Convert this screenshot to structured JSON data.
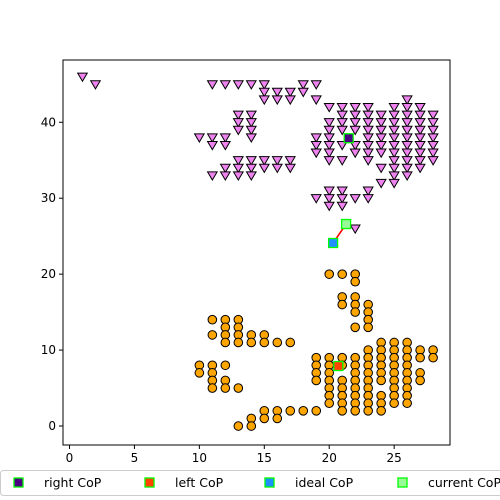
{
  "chart_data": {
    "type": "scatter",
    "title": "",
    "xlabel": "",
    "ylabel": "",
    "xlim": [
      -0.5,
      29.3
    ],
    "ylim": [
      -2.5,
      48.2
    ],
    "xticks": [
      0,
      5,
      10,
      15,
      20,
      25
    ],
    "yticks": [
      0,
      10,
      20,
      30,
      40
    ],
    "grid": false,
    "legend_position": "bottom",
    "series": [
      {
        "role": "foot-top",
        "marker": "triangle-down",
        "color": "#ee82ee",
        "points": [
          [
            1,
            46
          ],
          [
            2,
            45
          ],
          [
            11,
            45
          ],
          [
            12,
            45
          ],
          [
            13,
            45
          ],
          [
            14,
            45
          ],
          [
            15,
            45
          ],
          [
            18,
            45
          ],
          [
            19,
            45
          ],
          [
            15,
            44
          ],
          [
            16,
            44
          ],
          [
            17,
            44
          ],
          [
            18,
            44
          ],
          [
            15,
            43
          ],
          [
            16,
            43
          ],
          [
            17,
            43
          ],
          [
            19,
            43
          ],
          [
            26,
            43
          ],
          [
            20,
            42
          ],
          [
            21,
            42
          ],
          [
            22,
            42
          ],
          [
            23,
            42
          ],
          [
            25,
            42
          ],
          [
            26,
            42
          ],
          [
            27,
            42
          ],
          [
            13,
            41
          ],
          [
            14,
            41
          ],
          [
            21,
            41
          ],
          [
            22,
            41
          ],
          [
            23,
            41
          ],
          [
            24,
            41
          ],
          [
            25,
            41
          ],
          [
            26,
            41
          ],
          [
            27,
            41
          ],
          [
            28,
            41
          ],
          [
            13,
            40
          ],
          [
            14,
            40
          ],
          [
            20,
            40
          ],
          [
            21,
            40
          ],
          [
            22,
            40
          ],
          [
            23,
            40
          ],
          [
            24,
            40
          ],
          [
            25,
            40
          ],
          [
            26,
            40
          ],
          [
            27,
            40
          ],
          [
            28,
            40
          ],
          [
            13,
            39
          ],
          [
            14,
            39
          ],
          [
            20,
            39
          ],
          [
            21,
            39
          ],
          [
            22,
            39
          ],
          [
            23,
            39
          ],
          [
            24,
            39
          ],
          [
            25,
            39
          ],
          [
            26,
            39
          ],
          [
            27,
            39
          ],
          [
            28,
            39
          ],
          [
            10,
            38
          ],
          [
            11,
            38
          ],
          [
            12,
            38
          ],
          [
            14,
            38
          ],
          [
            19,
            38
          ],
          [
            20,
            38
          ],
          [
            23,
            38
          ],
          [
            24,
            38
          ],
          [
            25,
            38
          ],
          [
            26,
            38
          ],
          [
            27,
            38
          ],
          [
            28,
            38
          ],
          [
            11,
            37
          ],
          [
            12,
            37
          ],
          [
            19,
            37
          ],
          [
            20,
            37
          ],
          [
            21,
            37
          ],
          [
            22,
            37
          ],
          [
            23,
            37
          ],
          [
            24,
            37
          ],
          [
            25,
            37
          ],
          [
            26,
            37
          ],
          [
            27,
            37
          ],
          [
            28,
            37
          ],
          [
            19,
            36
          ],
          [
            20,
            36
          ],
          [
            22,
            36
          ],
          [
            23,
            36
          ],
          [
            24,
            36
          ],
          [
            25,
            36
          ],
          [
            26,
            36
          ],
          [
            27,
            36
          ],
          [
            28,
            36
          ],
          [
            13,
            35
          ],
          [
            14,
            35
          ],
          [
            15,
            35
          ],
          [
            16,
            35
          ],
          [
            17,
            35
          ],
          [
            20,
            35
          ],
          [
            21,
            35
          ],
          [
            23,
            35
          ],
          [
            25,
            35
          ],
          [
            26,
            35
          ],
          [
            27,
            35
          ],
          [
            28,
            35
          ],
          [
            12,
            34
          ],
          [
            13,
            34
          ],
          [
            14,
            34
          ],
          [
            15,
            34
          ],
          [
            16,
            34
          ],
          [
            17,
            34
          ],
          [
            24,
            34
          ],
          [
            25,
            34
          ],
          [
            26,
            34
          ],
          [
            27,
            34
          ],
          [
            11,
            33
          ],
          [
            12,
            33
          ],
          [
            13,
            33
          ],
          [
            14,
            33
          ],
          [
            25,
            33
          ],
          [
            26,
            33
          ],
          [
            24,
            32
          ],
          [
            25,
            32
          ],
          [
            20,
            31
          ],
          [
            21,
            31
          ],
          [
            23,
            31
          ],
          [
            19,
            30
          ],
          [
            20,
            30
          ],
          [
            21,
            30
          ],
          [
            22,
            30
          ],
          [
            23,
            30
          ],
          [
            20,
            29
          ],
          [
            21,
            29
          ],
          [
            22,
            26
          ]
        ]
      },
      {
        "role": "foot-bottom",
        "marker": "circle",
        "color": "#ffa500",
        "points": [
          [
            20,
            20
          ],
          [
            21,
            20
          ],
          [
            22,
            20
          ],
          [
            22,
            19
          ],
          [
            21,
            17
          ],
          [
            22,
            17
          ],
          [
            21,
            16
          ],
          [
            22,
            16
          ],
          [
            23,
            16
          ],
          [
            22,
            15
          ],
          [
            23,
            15
          ],
          [
            23,
            14
          ],
          [
            11,
            14
          ],
          [
            12,
            14
          ],
          [
            13,
            14
          ],
          [
            12,
            13
          ],
          [
            13,
            13
          ],
          [
            22,
            13
          ],
          [
            23,
            13
          ],
          [
            11,
            12
          ],
          [
            12,
            12
          ],
          [
            13,
            12
          ],
          [
            14,
            12
          ],
          [
            15,
            12
          ],
          [
            12,
            11
          ],
          [
            13,
            11
          ],
          [
            14,
            11
          ],
          [
            15,
            11
          ],
          [
            16,
            11
          ],
          [
            17,
            11
          ],
          [
            24,
            11
          ],
          [
            25,
            11
          ],
          [
            26,
            11
          ],
          [
            23,
            10
          ],
          [
            24,
            10
          ],
          [
            25,
            10
          ],
          [
            26,
            10
          ],
          [
            27,
            10
          ],
          [
            28,
            10
          ],
          [
            19,
            9
          ],
          [
            20,
            9
          ],
          [
            21,
            9
          ],
          [
            22,
            9
          ],
          [
            23,
            9
          ],
          [
            24,
            9
          ],
          [
            25,
            9
          ],
          [
            26,
            9
          ],
          [
            27,
            9
          ],
          [
            28,
            9
          ],
          [
            10,
            8
          ],
          [
            11,
            8
          ],
          [
            12,
            8
          ],
          [
            19,
            8
          ],
          [
            20,
            8
          ],
          [
            21,
            8
          ],
          [
            22,
            8
          ],
          [
            23,
            8
          ],
          [
            24,
            8
          ],
          [
            25,
            8
          ],
          [
            26,
            8
          ],
          [
            10,
            7
          ],
          [
            11,
            7
          ],
          [
            19,
            7
          ],
          [
            20,
            7
          ],
          [
            22,
            7
          ],
          [
            23,
            7
          ],
          [
            24,
            7
          ],
          [
            25,
            7
          ],
          [
            26,
            7
          ],
          [
            27,
            7
          ],
          [
            11,
            6
          ],
          [
            12,
            6
          ],
          [
            19,
            6
          ],
          [
            20,
            6
          ],
          [
            21,
            6
          ],
          [
            22,
            6
          ],
          [
            23,
            6
          ],
          [
            24,
            6
          ],
          [
            25,
            6
          ],
          [
            26,
            6
          ],
          [
            27,
            6
          ],
          [
            11,
            5
          ],
          [
            12,
            5
          ],
          [
            13,
            5
          ],
          [
            20,
            5
          ],
          [
            21,
            5
          ],
          [
            22,
            5
          ],
          [
            23,
            5
          ],
          [
            25,
            5
          ],
          [
            26,
            5
          ],
          [
            20,
            4
          ],
          [
            21,
            4
          ],
          [
            22,
            4
          ],
          [
            23,
            4
          ],
          [
            24,
            4
          ],
          [
            25,
            4
          ],
          [
            26,
            4
          ],
          [
            20,
            3
          ],
          [
            21,
            3
          ],
          [
            22,
            3
          ],
          [
            23,
            3
          ],
          [
            24,
            3
          ],
          [
            25,
            3
          ],
          [
            26,
            3
          ],
          [
            15,
            2
          ],
          [
            16,
            2
          ],
          [
            17,
            2
          ],
          [
            18,
            2
          ],
          [
            19,
            2
          ],
          [
            21,
            2
          ],
          [
            22,
            2
          ],
          [
            23,
            2
          ],
          [
            24,
            2
          ],
          [
            14,
            1
          ],
          [
            15,
            1
          ],
          [
            16,
            1
          ],
          [
            13,
            0
          ],
          [
            14,
            0
          ]
        ]
      }
    ],
    "cop_markers": [
      {
        "label": "right CoP",
        "x": 21.5,
        "y": 37.9,
        "fill": "#4b0082",
        "edge": "#00ff00"
      },
      {
        "label": "left CoP",
        "x": 20.7,
        "y": 7.9,
        "fill": "#ff4500",
        "edge": "#00ff00"
      },
      {
        "label": "ideal CoP",
        "x": 20.3,
        "y": 24.1,
        "fill": "#1e90ff",
        "edge": "#00ff00"
      },
      {
        "label": "current CoP",
        "x": 21.3,
        "y": 26.6,
        "fill": "#98fb98",
        "edge": "#00ff00"
      }
    ],
    "line": {
      "color": "#ff0000",
      "from": [
        20.3,
        24.1
      ],
      "to": [
        21.3,
        26.6
      ]
    }
  }
}
